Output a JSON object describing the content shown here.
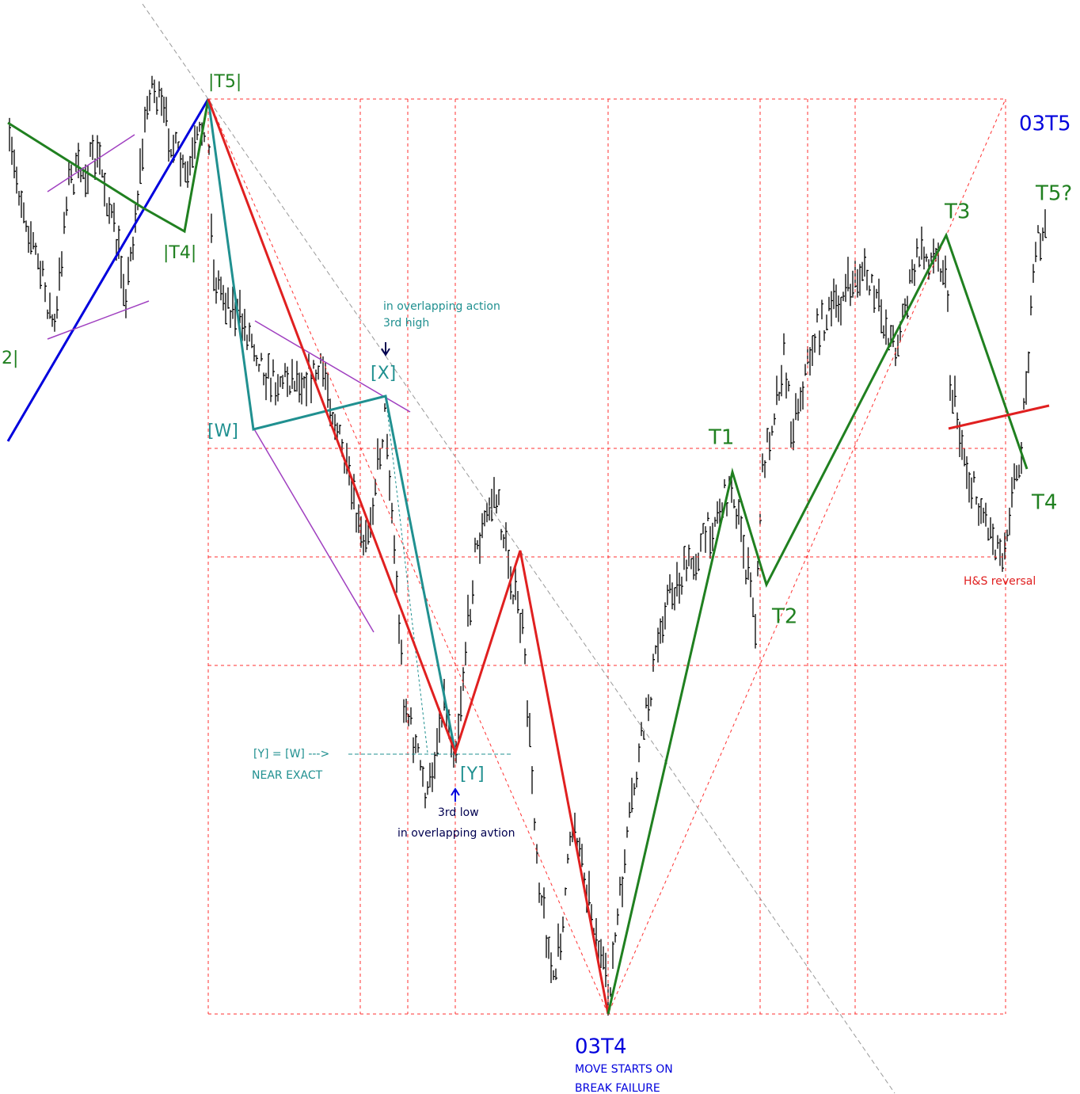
{
  "annotations": {
    "t5_left": "|T5|",
    "t4_left": "|T4|",
    "two_left": "2|",
    "w": "[W]",
    "x": "[X]",
    "y": "[Y]",
    "x_note_1": "in overlapping action",
    "x_note_2": "3rd high",
    "y_eq_w": "[Y] = [W] --->",
    "near_exact": "NEAR EXACT",
    "y_note_1": "3rd low",
    "y_note_2": "in overlapping avtion",
    "low_label": "03T4",
    "low_note_1": "MOVE STARTS ON",
    "low_note_2": "BREAK FAILURE",
    "t1": "T1",
    "t2": "T2",
    "t3": "T3",
    "t4": "T4",
    "t5q": "T5?",
    "high_label": "03T5",
    "hs": "H&S reversal"
  }
}
